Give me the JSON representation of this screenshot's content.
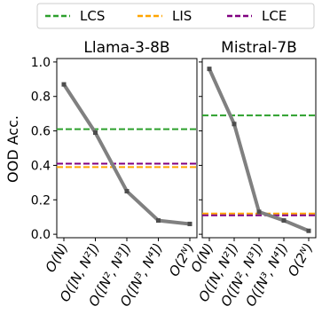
{
  "chart_data": [
    {
      "type": "line",
      "title": "Llama-3-8B",
      "ylabel": "OOD Acc.",
      "xlabel": "",
      "categories": [
        "O(N)",
        "O([N, N²])",
        "O([N², N³])",
        "O([N³, N⁴])",
        "O(2ᴺ)"
      ],
      "series": [
        {
          "values": [
            0.87,
            0.59,
            0.25,
            0.08,
            0.06
          ],
          "color": "#808080"
        }
      ],
      "baselines": [
        {
          "name": "LCS",
          "value": 0.61,
          "color": "#2ca02c"
        },
        {
          "name": "LIS",
          "value": 0.39,
          "color": "#ffa500"
        },
        {
          "name": "LCE",
          "value": 0.41,
          "color": "#800080"
        }
      ],
      "ylim": [
        -0.02,
        1.02
      ],
      "yticks": [
        "0.0",
        "0.2",
        "0.4",
        "0.6",
        "0.8",
        "1.0"
      ],
      "grid": false,
      "legend": "top-center"
    },
    {
      "type": "line",
      "title": "Mistral-7B",
      "xlabel": "",
      "categories": [
        "O(N)",
        "O([N, N²])",
        "O([N², N³])",
        "O([N³, N⁴])",
        "O(2ᴺ)"
      ],
      "series": [
        {
          "values": [
            0.96,
            0.64,
            0.13,
            0.08,
            0.02
          ],
          "color": "#808080"
        }
      ],
      "baselines": [
        {
          "name": "LCS",
          "value": 0.69,
          "color": "#2ca02c"
        },
        {
          "name": "LIS",
          "value": 0.12,
          "color": "#ffa500"
        },
        {
          "name": "LCE",
          "value": 0.11,
          "color": "#800080"
        }
      ],
      "ylim": [
        -0.02,
        1.02
      ],
      "grid": false
    }
  ],
  "legend": [
    {
      "label": "LCS",
      "color": "#2ca02c"
    },
    {
      "label": "LIS",
      "color": "#ffa500"
    },
    {
      "label": "LCE",
      "color": "#800080"
    }
  ]
}
